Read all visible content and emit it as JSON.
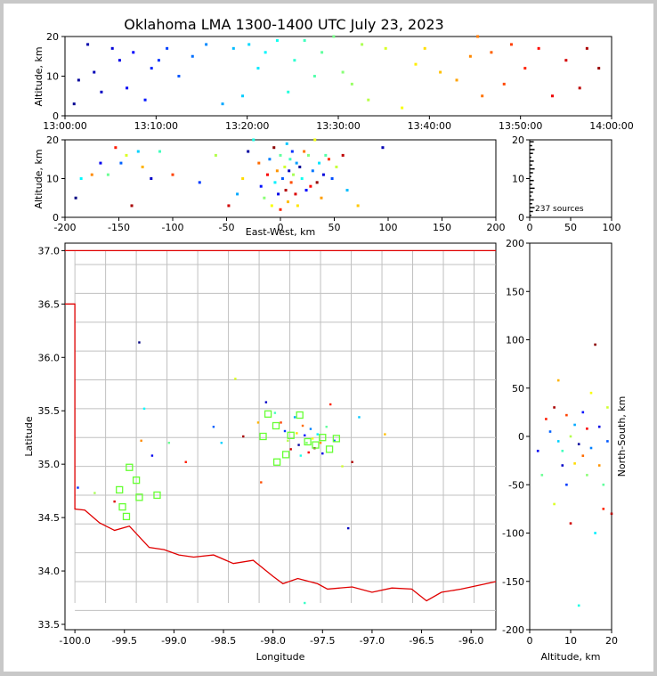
{
  "title": "Oklahoma LMA 1300-1400 UTC July 23, 2023",
  "source_count_label": "237 sources",
  "axes": {
    "time_alt": {
      "ylabel": "Altitude, km",
      "x_ticks": [
        "13:00:00",
        "13:10:00",
        "13:20:00",
        "13:30:00",
        "13:40:00",
        "13:50:00",
        "14:00:00"
      ],
      "y_ticks": [
        "0",
        "10",
        "20"
      ]
    },
    "ew_alt": {
      "xlabel": "East-West, km",
      "ylabel": "Altitude, km",
      "x_ticks": [
        "-200",
        "-150",
        "-100",
        "-50",
        "0",
        "50",
        "100",
        "150",
        "200"
      ],
      "y_ticks": [
        "0",
        "10",
        "20"
      ]
    },
    "hist": {
      "x_ticks": [
        "0",
        "50",
        "100"
      ],
      "y_ticks": [
        "0",
        "10",
        "20"
      ]
    },
    "map": {
      "xlabel": "Longitude",
      "ylabel": "Latitude",
      "x_ticks": [
        "-100.0",
        "-99.5",
        "-99.0",
        "-98.5",
        "-98.0",
        "-97.5",
        "-97.0",
        "-96.5",
        "-96.0"
      ],
      "y_ticks": [
        "37.0",
        "36.5",
        "36.0",
        "35.5",
        "35.0",
        "34.5",
        "34.0",
        "33.5"
      ]
    },
    "ns_alt": {
      "xlabel": "Altitude, km",
      "ylabel": "North-South, km",
      "x_ticks": [
        "0",
        "10",
        "20"
      ],
      "y_ticks": [
        "200",
        "150",
        "100",
        "50",
        "0",
        "-50",
        "-100",
        "-150",
        "-200"
      ]
    }
  },
  "chart_data": [
    {
      "type": "scatter",
      "panel": "time-altitude",
      "xlim": [
        "13:00:00",
        "14:00:00"
      ],
      "ylim": [
        0,
        20
      ],
      "color_encoding": "time (blue early to red late)",
      "points_min_alt": [
        [
          1.0,
          3
        ],
        [
          1.5,
          9
        ],
        [
          2.5,
          18
        ],
        [
          3.2,
          11
        ],
        [
          4.0,
          6
        ],
        [
          5.2,
          17
        ],
        [
          6.0,
          14
        ],
        [
          6.8,
          7
        ],
        [
          7.5,
          16
        ],
        [
          8.8,
          4
        ],
        [
          9.5,
          12
        ],
        [
          10.3,
          14
        ],
        [
          11.2,
          17
        ],
        [
          12.5,
          10
        ],
        [
          14.0,
          15
        ],
        [
          15.5,
          18
        ],
        [
          17.3,
          3
        ],
        [
          18.5,
          17
        ],
        [
          19.5,
          5
        ],
        [
          20.2,
          18
        ],
        [
          21.2,
          12
        ],
        [
          22.0,
          16
        ],
        [
          23.3,
          19
        ],
        [
          24.5,
          6
        ],
        [
          25.2,
          14
        ],
        [
          26.3,
          19
        ],
        [
          27.4,
          10
        ],
        [
          28.2,
          16
        ],
        [
          29.5,
          20
        ],
        [
          30.5,
          11
        ],
        [
          31.5,
          8
        ],
        [
          32.6,
          18
        ],
        [
          33.3,
          4
        ],
        [
          35.2,
          17
        ],
        [
          37.0,
          2
        ],
        [
          38.5,
          13
        ],
        [
          39.5,
          17
        ],
        [
          41.2,
          11
        ],
        [
          43.0,
          9
        ],
        [
          44.5,
          15
        ],
        [
          45.3,
          20
        ],
        [
          45.8,
          5
        ],
        [
          46.8,
          16
        ],
        [
          48.2,
          8
        ],
        [
          49.0,
          18
        ],
        [
          50.5,
          12
        ],
        [
          52.0,
          17
        ],
        [
          53.5,
          5
        ],
        [
          55.0,
          14
        ],
        [
          56.5,
          7
        ],
        [
          57.3,
          17
        ],
        [
          58.6,
          12
        ]
      ]
    },
    {
      "type": "scatter",
      "panel": "east-west-altitude",
      "xlim": [
        -200,
        200
      ],
      "ylim": [
        0,
        20
      ],
      "points": [
        [
          -190,
          5
        ],
        [
          -185,
          10
        ],
        [
          -175,
          11
        ],
        [
          -167,
          14
        ],
        [
          -160,
          11
        ],
        [
          -153,
          18
        ],
        [
          -148,
          14
        ],
        [
          -143,
          16
        ],
        [
          -138,
          3
        ],
        [
          -132,
          17
        ],
        [
          -128,
          13
        ],
        [
          -120,
          10
        ],
        [
          -112,
          17
        ],
        [
          -100,
          11
        ],
        [
          -75,
          9
        ],
        [
          -60,
          16
        ],
        [
          -48,
          3
        ],
        [
          -40,
          6
        ],
        [
          -35,
          10
        ],
        [
          -30,
          17
        ],
        [
          -25,
          20
        ],
        [
          -20,
          14
        ],
        [
          -18,
          8
        ],
        [
          -15,
          5
        ],
        [
          -12,
          11
        ],
        [
          -10,
          15
        ],
        [
          -8,
          3
        ],
        [
          -6,
          18
        ],
        [
          -5,
          9
        ],
        [
          -3,
          12
        ],
        [
          -2,
          6
        ],
        [
          0,
          16
        ],
        [
          0,
          2
        ],
        [
          2,
          10
        ],
        [
          4,
          13
        ],
        [
          5,
          7
        ],
        [
          6,
          19
        ],
        [
          7,
          4
        ],
        [
          8,
          12
        ],
        [
          9,
          15
        ],
        [
          10,
          9
        ],
        [
          11,
          17
        ],
        [
          12,
          11
        ],
        [
          14,
          6
        ],
        [
          15,
          14
        ],
        [
          16,
          3
        ],
        [
          18,
          13
        ],
        [
          20,
          10
        ],
        [
          22,
          17
        ],
        [
          24,
          7
        ],
        [
          26,
          16
        ],
        [
          28,
          8
        ],
        [
          30,
          12
        ],
        [
          32,
          20
        ],
        [
          34,
          9
        ],
        [
          36,
          14
        ],
        [
          38,
          5
        ],
        [
          40,
          11
        ],
        [
          42,
          16
        ],
        [
          45,
          15
        ],
        [
          48,
          10
        ],
        [
          52,
          13
        ],
        [
          58,
          16
        ],
        [
          62,
          7
        ],
        [
          72,
          3
        ],
        [
          95,
          18
        ]
      ]
    },
    {
      "type": "histogram",
      "panel": "altitude-histogram",
      "xlim": [
        0,
        100
      ],
      "ylim": [
        0,
        20
      ],
      "total_sources": 237
    },
    {
      "type": "scatter",
      "panel": "plan-view-map",
      "xlim": [
        -100.1,
        -95.75
      ],
      "ylim": [
        33.45,
        37.07
      ],
      "stations": [
        [
          -98.05,
          35.47
        ],
        [
          -97.73,
          35.46
        ],
        [
          -97.97,
          35.36
        ],
        [
          -98.1,
          35.26
        ],
        [
          -97.82,
          35.27
        ],
        [
          -97.5,
          35.25
        ],
        [
          -97.57,
          35.18
        ],
        [
          -97.65,
          35.21
        ],
        [
          -97.87,
          35.09
        ],
        [
          -97.96,
          35.02
        ],
        [
          -97.36,
          35.24
        ],
        [
          -97.43,
          35.14
        ],
        [
          -99.45,
          34.97
        ],
        [
          -99.38,
          34.85
        ],
        [
          -99.55,
          34.76
        ],
        [
          -99.52,
          34.6
        ],
        [
          -99.35,
          34.69
        ],
        [
          -99.48,
          34.51
        ],
        [
          -99.17,
          34.71
        ]
      ],
      "sources": [
        [
          -99.35,
          36.14
        ],
        [
          -99.3,
          35.52
        ],
        [
          -99.33,
          35.22
        ],
        [
          -99.22,
          35.08
        ],
        [
          -99.05,
          35.2
        ],
        [
          -98.88,
          35.02
        ],
        [
          -98.6,
          35.35
        ],
        [
          -98.38,
          35.8
        ],
        [
          -98.3,
          35.26
        ],
        [
          -98.52,
          35.2
        ],
        [
          -98.15,
          35.39
        ],
        [
          -98.07,
          35.58
        ],
        [
          -97.98,
          35.48
        ],
        [
          -97.92,
          35.39
        ],
        [
          -97.88,
          35.31
        ],
        [
          -97.85,
          35.22
        ],
        [
          -97.82,
          35.14
        ],
        [
          -97.78,
          35.44
        ],
        [
          -97.76,
          35.29
        ],
        [
          -97.74,
          35.18
        ],
        [
          -97.72,
          35.08
        ],
        [
          -97.7,
          35.36
        ],
        [
          -97.68,
          35.27
        ],
        [
          -97.66,
          35.2
        ],
        [
          -97.64,
          35.11
        ],
        [
          -97.62,
          35.33
        ],
        [
          -97.6,
          35.24
        ],
        [
          -97.58,
          35.15
        ],
        [
          -97.55,
          35.28
        ],
        [
          -97.52,
          35.2
        ],
        [
          -97.5,
          35.1
        ],
        [
          -97.46,
          35.35
        ],
        [
          -97.42,
          35.56
        ],
        [
          -97.38,
          35.22
        ],
        [
          -97.3,
          34.98
        ],
        [
          -97.2,
          35.02
        ],
        [
          -97.13,
          35.44
        ],
        [
          -96.87,
          35.28
        ],
        [
          -97.24,
          34.4
        ],
        [
          -97.68,
          33.7
        ],
        [
          -98.12,
          34.83
        ],
        [
          -99.97,
          34.78
        ],
        [
          -99.8,
          34.73
        ],
        [
          -99.6,
          34.65
        ]
      ]
    },
    {
      "type": "scatter",
      "panel": "altitude-north-south",
      "xlim": [
        0,
        20
      ],
      "ylim": [
        -200,
        200
      ],
      "points": [
        [
          2,
          -15
        ],
        [
          3,
          -40
        ],
        [
          4,
          18
        ],
        [
          5,
          5
        ],
        [
          6,
          -70
        ],
        [
          6,
          30
        ],
        [
          7,
          -5
        ],
        [
          7,
          58
        ],
        [
          8,
          -30
        ],
        [
          8,
          -15
        ],
        [
          9,
          22
        ],
        [
          9,
          -50
        ],
        [
          10,
          0
        ],
        [
          10,
          -90
        ],
        [
          11,
          12
        ],
        [
          11,
          -28
        ],
        [
          12,
          -8
        ],
        [
          12,
          -175
        ],
        [
          13,
          -20
        ],
        [
          13,
          25
        ],
        [
          14,
          -40
        ],
        [
          14,
          8
        ],
        [
          15,
          -12
        ],
        [
          15,
          45
        ],
        [
          16,
          95
        ],
        [
          16,
          -100
        ],
        [
          17,
          -30
        ],
        [
          17,
          10
        ],
        [
          18,
          -50
        ],
        [
          18,
          -75
        ],
        [
          19,
          -5
        ],
        [
          19,
          30
        ],
        [
          20,
          -80
        ]
      ]
    }
  ]
}
